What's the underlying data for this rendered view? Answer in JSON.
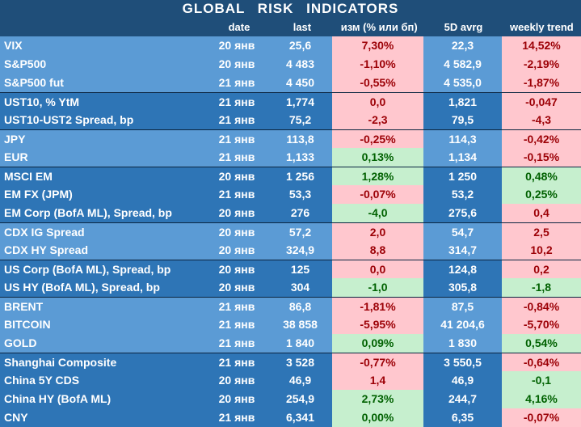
{
  "title": "GLOBAL  RISK  INDICATORS",
  "headers": {
    "name": "",
    "date": "date",
    "last": "last",
    "chg": "изм (% или бп)",
    "avg": "5D avrg",
    "trend": "weekly trend"
  },
  "colors": {
    "header": "#1f4e79",
    "group_light": "#5b9bd5",
    "group_dark": "#2e75b6",
    "negative_fill": "#ffc7ce",
    "negative_text": "#9c0006",
    "positive_fill": "#c6efce",
    "positive_text": "#006100"
  },
  "rows": [
    {
      "name": "VIX",
      "date": "20 янв",
      "last": "25,6",
      "chg": "7,30%",
      "chg_sign": "neg",
      "avg": "22,3",
      "trend": "14,52%",
      "trend_sign": "neg",
      "group": "a"
    },
    {
      "name": "S&P500",
      "date": "20 янв",
      "last": "4 483",
      "chg": "-1,10%",
      "chg_sign": "neg",
      "avg": "4 582,9",
      "trend": "-2,19%",
      "trend_sign": "neg",
      "group": "a"
    },
    {
      "name": "S&P500 fut",
      "date": "21 янв",
      "last": "4 450",
      "chg": "-0,55%",
      "chg_sign": "neg",
      "avg": "4 535,0",
      "trend": "-1,87%",
      "trend_sign": "neg",
      "group": "a"
    },
    {
      "name": "UST10, % YtM",
      "date": "21 янв",
      "last": "1,774",
      "chg": "0,0",
      "chg_sign": "neg",
      "avg": "1,821",
      "trend": "-0,047",
      "trend_sign": "neg",
      "group": "b"
    },
    {
      "name": "UST10-UST2 Spread, bp",
      "date": "21 янв",
      "last": "75,2",
      "chg": "-2,3",
      "chg_sign": "neg",
      "avg": "79,5",
      "trend": "-4,3",
      "trend_sign": "neg",
      "group": "b"
    },
    {
      "name": "JPY",
      "date": "21 янв",
      "last": "113,8",
      "chg": "-0,25%",
      "chg_sign": "neg",
      "avg": "114,3",
      "trend": "-0,42%",
      "trend_sign": "neg",
      "group": "a"
    },
    {
      "name": "EUR",
      "date": "21 янв",
      "last": "1,133",
      "chg": "0,13%",
      "chg_sign": "pos",
      "avg": "1,134",
      "trend": "-0,15%",
      "trend_sign": "neg",
      "group": "a"
    },
    {
      "name": "MSCI EM",
      "date": "20 янв",
      "last": "1 256",
      "chg": "1,28%",
      "chg_sign": "pos",
      "avg": "1 250",
      "trend": "0,48%",
      "trend_sign": "pos",
      "group": "b"
    },
    {
      "name": "EM FX (JPM)",
      "date": "21 янв",
      "last": "53,3",
      "chg": "-0,07%",
      "chg_sign": "neg",
      "avg": "53,2",
      "trend": "0,25%",
      "trend_sign": "pos",
      "group": "b"
    },
    {
      "name": "EM Corp (BofA ML), Spread, bp",
      "date": "20 янв",
      "last": "276",
      "chg": "-4,0",
      "chg_sign": "pos",
      "avg": "275,6",
      "trend": "0,4",
      "trend_sign": "neg",
      "group": "b"
    },
    {
      "name": "CDX IG Spread",
      "date": "20 янв",
      "last": "57,2",
      "chg": "2,0",
      "chg_sign": "neg",
      "avg": "54,7",
      "trend": "2,5",
      "trend_sign": "neg",
      "group": "a"
    },
    {
      "name": "CDX HY Spread",
      "date": "20 янв",
      "last": "324,9",
      "chg": "8,8",
      "chg_sign": "neg",
      "avg": "314,7",
      "trend": "10,2",
      "trend_sign": "neg",
      "group": "a"
    },
    {
      "name": "US Corp (BofA ML), Spread, bp",
      "date": "20 янв",
      "last": "125",
      "chg": "0,0",
      "chg_sign": "neg",
      "avg": "124,8",
      "trend": "0,2",
      "trend_sign": "neg",
      "group": "b"
    },
    {
      "name": "US HY (BofA ML), Spread, bp",
      "date": "20 янв",
      "last": "304",
      "chg": "-1,0",
      "chg_sign": "pos",
      "avg": "305,8",
      "trend": "-1,8",
      "trend_sign": "pos",
      "group": "b"
    },
    {
      "name": "BRENT",
      "date": "21 янв",
      "last": "86,8",
      "chg": "-1,81%",
      "chg_sign": "neg",
      "avg": "87,5",
      "trend": "-0,84%",
      "trend_sign": "neg",
      "group": "a"
    },
    {
      "name": "BITCOIN",
      "date": "21 янв",
      "last": "38 858",
      "chg": "-5,95%",
      "chg_sign": "neg",
      "avg": "41 204,6",
      "trend": "-5,70%",
      "trend_sign": "neg",
      "group": "a"
    },
    {
      "name": "GOLD",
      "date": "21 янв",
      "last": "1 840",
      "chg": "0,09%",
      "chg_sign": "pos",
      "avg": "1 830",
      "trend": "0,54%",
      "trend_sign": "pos",
      "group": "a"
    },
    {
      "name": "Shanghai Composite",
      "date": "21 янв",
      "last": "3 528",
      "chg": "-0,77%",
      "chg_sign": "neg",
      "avg": "3 550,5",
      "trend": "-0,64%",
      "trend_sign": "neg",
      "group": "b"
    },
    {
      "name": "China 5Y CDS",
      "date": "20 янв",
      "last": "46,9",
      "chg": "1,4",
      "chg_sign": "neg",
      "avg": "46,9",
      "trend": "-0,1",
      "trend_sign": "pos",
      "group": "b"
    },
    {
      "name": "China HY (BofA ML)",
      "date": "20 янв",
      "last": "254,9",
      "chg": "2,73%",
      "chg_sign": "pos",
      "avg": "244,7",
      "trend": "4,16%",
      "trend_sign": "pos",
      "group": "b"
    },
    {
      "name": "CNY",
      "date": "21 янв",
      "last": "6,341",
      "chg": "0,00%",
      "chg_sign": "pos",
      "avg": "6,35",
      "trend": "-0,07%",
      "trend_sign": "neg",
      "group": "b"
    }
  ]
}
